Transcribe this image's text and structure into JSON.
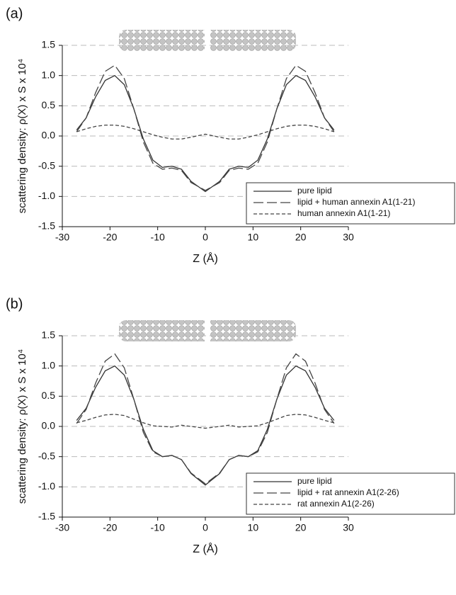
{
  "chart_data": [
    {
      "type": "line",
      "label": "(a)",
      "y_label": "scattering density: ρ(X) x S x 10⁴",
      "x_label": "Z (Å)",
      "x": [
        -27,
        -25,
        -23,
        -21,
        -19,
        -17,
        -15,
        -13,
        -11,
        -9,
        -7,
        -5,
        -3,
        0,
        3,
        5,
        7,
        9,
        11,
        13,
        15,
        17,
        19,
        21,
        23,
        25,
        27
      ],
      "series": [
        {
          "name": "pure lipid",
          "color": "#333333",
          "dash": "solid",
          "values": [
            0.1,
            0.3,
            0.65,
            0.92,
            1.0,
            0.85,
            0.45,
            -0.05,
            -0.4,
            -0.52,
            -0.5,
            -0.55,
            -0.75,
            -0.92,
            -0.75,
            -0.55,
            -0.5,
            -0.52,
            -0.4,
            -0.05,
            0.45,
            0.85,
            1.0,
            0.92,
            0.65,
            0.3,
            0.1
          ]
        },
        {
          "name": "lipid + human annexin A1(1-21)",
          "color": "#444444",
          "dash": "long",
          "values": [
            0.07,
            0.3,
            0.72,
            1.07,
            1.17,
            0.95,
            0.45,
            -0.1,
            -0.45,
            -0.55,
            -0.53,
            -0.57,
            -0.77,
            -0.9,
            -0.77,
            -0.57,
            -0.53,
            -0.55,
            -0.45,
            -0.1,
            0.45,
            0.95,
            1.17,
            1.07,
            0.72,
            0.3,
            0.07
          ]
        },
        {
          "name": "human annexin A1(1-21)",
          "color": "#444444",
          "dash": "short",
          "values": [
            0.07,
            0.12,
            0.16,
            0.18,
            0.18,
            0.16,
            0.12,
            0.07,
            0.02,
            -0.02,
            -0.05,
            -0.05,
            -0.02,
            0.03,
            -0.02,
            -0.05,
            -0.05,
            -0.02,
            0.02,
            0.07,
            0.12,
            0.16,
            0.18,
            0.18,
            0.16,
            0.12,
            0.07
          ]
        }
      ],
      "xlim": [
        -30,
        30
      ],
      "xticks": [
        -30,
        -20,
        -10,
        0,
        10,
        20,
        30
      ],
      "ylim": [
        -1.5,
        1.5
      ],
      "yticks": [
        -1.5,
        {
          "value": -1.0,
          "label": "-1.0"
        },
        -0.5,
        {
          "value": 0,
          "label": "0.0"
        },
        0.5,
        {
          "value": 1.0,
          "label": "1.0"
        },
        1.5
      ],
      "grid": true,
      "legend": "lower right"
    },
    {
      "type": "line",
      "label": "(b)",
      "y_label": "scattering density: ρ(X) x S x 10⁴",
      "x_label": "Z (Å)",
      "x": [
        -27,
        -25,
        -23,
        -21,
        -19,
        -17,
        -15,
        -13,
        -11,
        -9,
        -7,
        -5,
        -3,
        0,
        3,
        5,
        7,
        9,
        11,
        13,
        15,
        17,
        19,
        21,
        23,
        25,
        27
      ],
      "series": [
        {
          "name": "pure lipid",
          "color": "#333333",
          "dash": "solid",
          "values": [
            0.1,
            0.3,
            0.65,
            0.92,
            1.0,
            0.85,
            0.45,
            -0.05,
            -0.4,
            -0.5,
            -0.48,
            -0.55,
            -0.78,
            -0.97,
            -0.78,
            -0.55,
            -0.48,
            -0.5,
            -0.4,
            -0.05,
            0.45,
            0.85,
            1.0,
            0.92,
            0.65,
            0.3,
            0.1
          ]
        },
        {
          "name": "lipid + rat annexin A1(2-26)",
          "color": "#444444",
          "dash": "long",
          "values": [
            0.05,
            0.28,
            0.72,
            1.08,
            1.2,
            0.97,
            0.45,
            -0.1,
            -0.42,
            -0.5,
            -0.48,
            -0.55,
            -0.77,
            -0.95,
            -0.77,
            -0.55,
            -0.48,
            -0.5,
            -0.42,
            -0.1,
            0.45,
            0.97,
            1.2,
            1.08,
            0.72,
            0.28,
            0.05
          ]
        },
        {
          "name": "rat annexin A1(2-26)",
          "color": "#444444",
          "dash": "short",
          "values": [
            0.06,
            0.1,
            0.15,
            0.19,
            0.2,
            0.18,
            0.12,
            0.06,
            0.01,
            0,
            -0.01,
            0.02,
            0,
            -0.03,
            0,
            0.02,
            -0.01,
            0,
            0.01,
            0.06,
            0.12,
            0.18,
            0.2,
            0.19,
            0.15,
            0.1,
            0.06
          ]
        }
      ],
      "xlim": [
        -30,
        30
      ],
      "xticks": [
        -30,
        -20,
        -10,
        0,
        10,
        20,
        30
      ],
      "ylim": [
        -1.5,
        1.5
      ],
      "yticks": [
        -1.5,
        {
          "value": -1.0,
          "label": "-1.0"
        },
        -0.5,
        {
          "value": 0,
          "label": "0.0"
        },
        0.5,
        {
          "value": 1.0,
          "label": "1.0"
        },
        1.5
      ],
      "grid": true,
      "legend": "lower right"
    }
  ]
}
